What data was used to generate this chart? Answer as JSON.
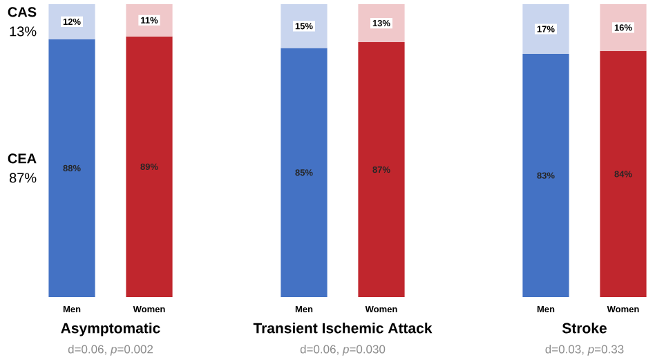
{
  "chart_data": [
    {
      "type": "bar",
      "stacked": true,
      "title": "Asymptomatic",
      "subtitle": "d=0.06, *p*=0.002",
      "categories": [
        "Men",
        "Women"
      ],
      "tick_labels": "x",
      "series": [
        {
          "name": "CEA",
          "colors": [
            "#4472c4",
            "#c0262d"
          ],
          "values": [
            88,
            89
          ],
          "value_labels": [
            "88%",
            "89%"
          ]
        },
        {
          "name": "CAS",
          "colors": [
            "#c9d5ee",
            "#f0c8ca"
          ],
          "values": [
            12,
            11
          ],
          "value_labels": [
            "12%",
            "11%"
          ]
        }
      ],
      "annotations": [
        "87%",
        "13%"
      ]
    },
    {
      "type": "bar",
      "stacked": true,
      "title": "Transient Ischemic Attack",
      "subtitle": "d=0.06, *p*=0.030",
      "categories": [
        "Men",
        "Women"
      ],
      "tick_labels": "x",
      "series": [
        {
          "colors": [
            "#4472c4",
            "#c0262d"
          ],
          "values": [
            85,
            87
          ],
          "value_labels": [
            "85%",
            "87%"
          ]
        },
        {
          "colors": [
            "#c9d5ee",
            "#f0c8ca"
          ],
          "values": [
            15,
            13
          ],
          "value_labels": [
            "15%",
            "13%"
          ]
        }
      ]
    },
    {
      "type": "bar",
      "stacked": true,
      "title": "Stroke",
      "subtitle": "d=0.03, *p*=0.33",
      "categories": [
        "Men",
        "Women"
      ],
      "tick_labels": "x",
      "series": [
        {
          "colors": [
            "#4472c4",
            "#c0262d"
          ],
          "values": [
            83,
            84
          ],
          "value_labels": [
            "83%",
            "84%"
          ]
        },
        {
          "colors": [
            "#c9d5ee",
            "#f0c8ca"
          ],
          "values": [
            17,
            16
          ],
          "value_labels": [
            "17%",
            "16%"
          ]
        }
      ]
    }
  ]
}
